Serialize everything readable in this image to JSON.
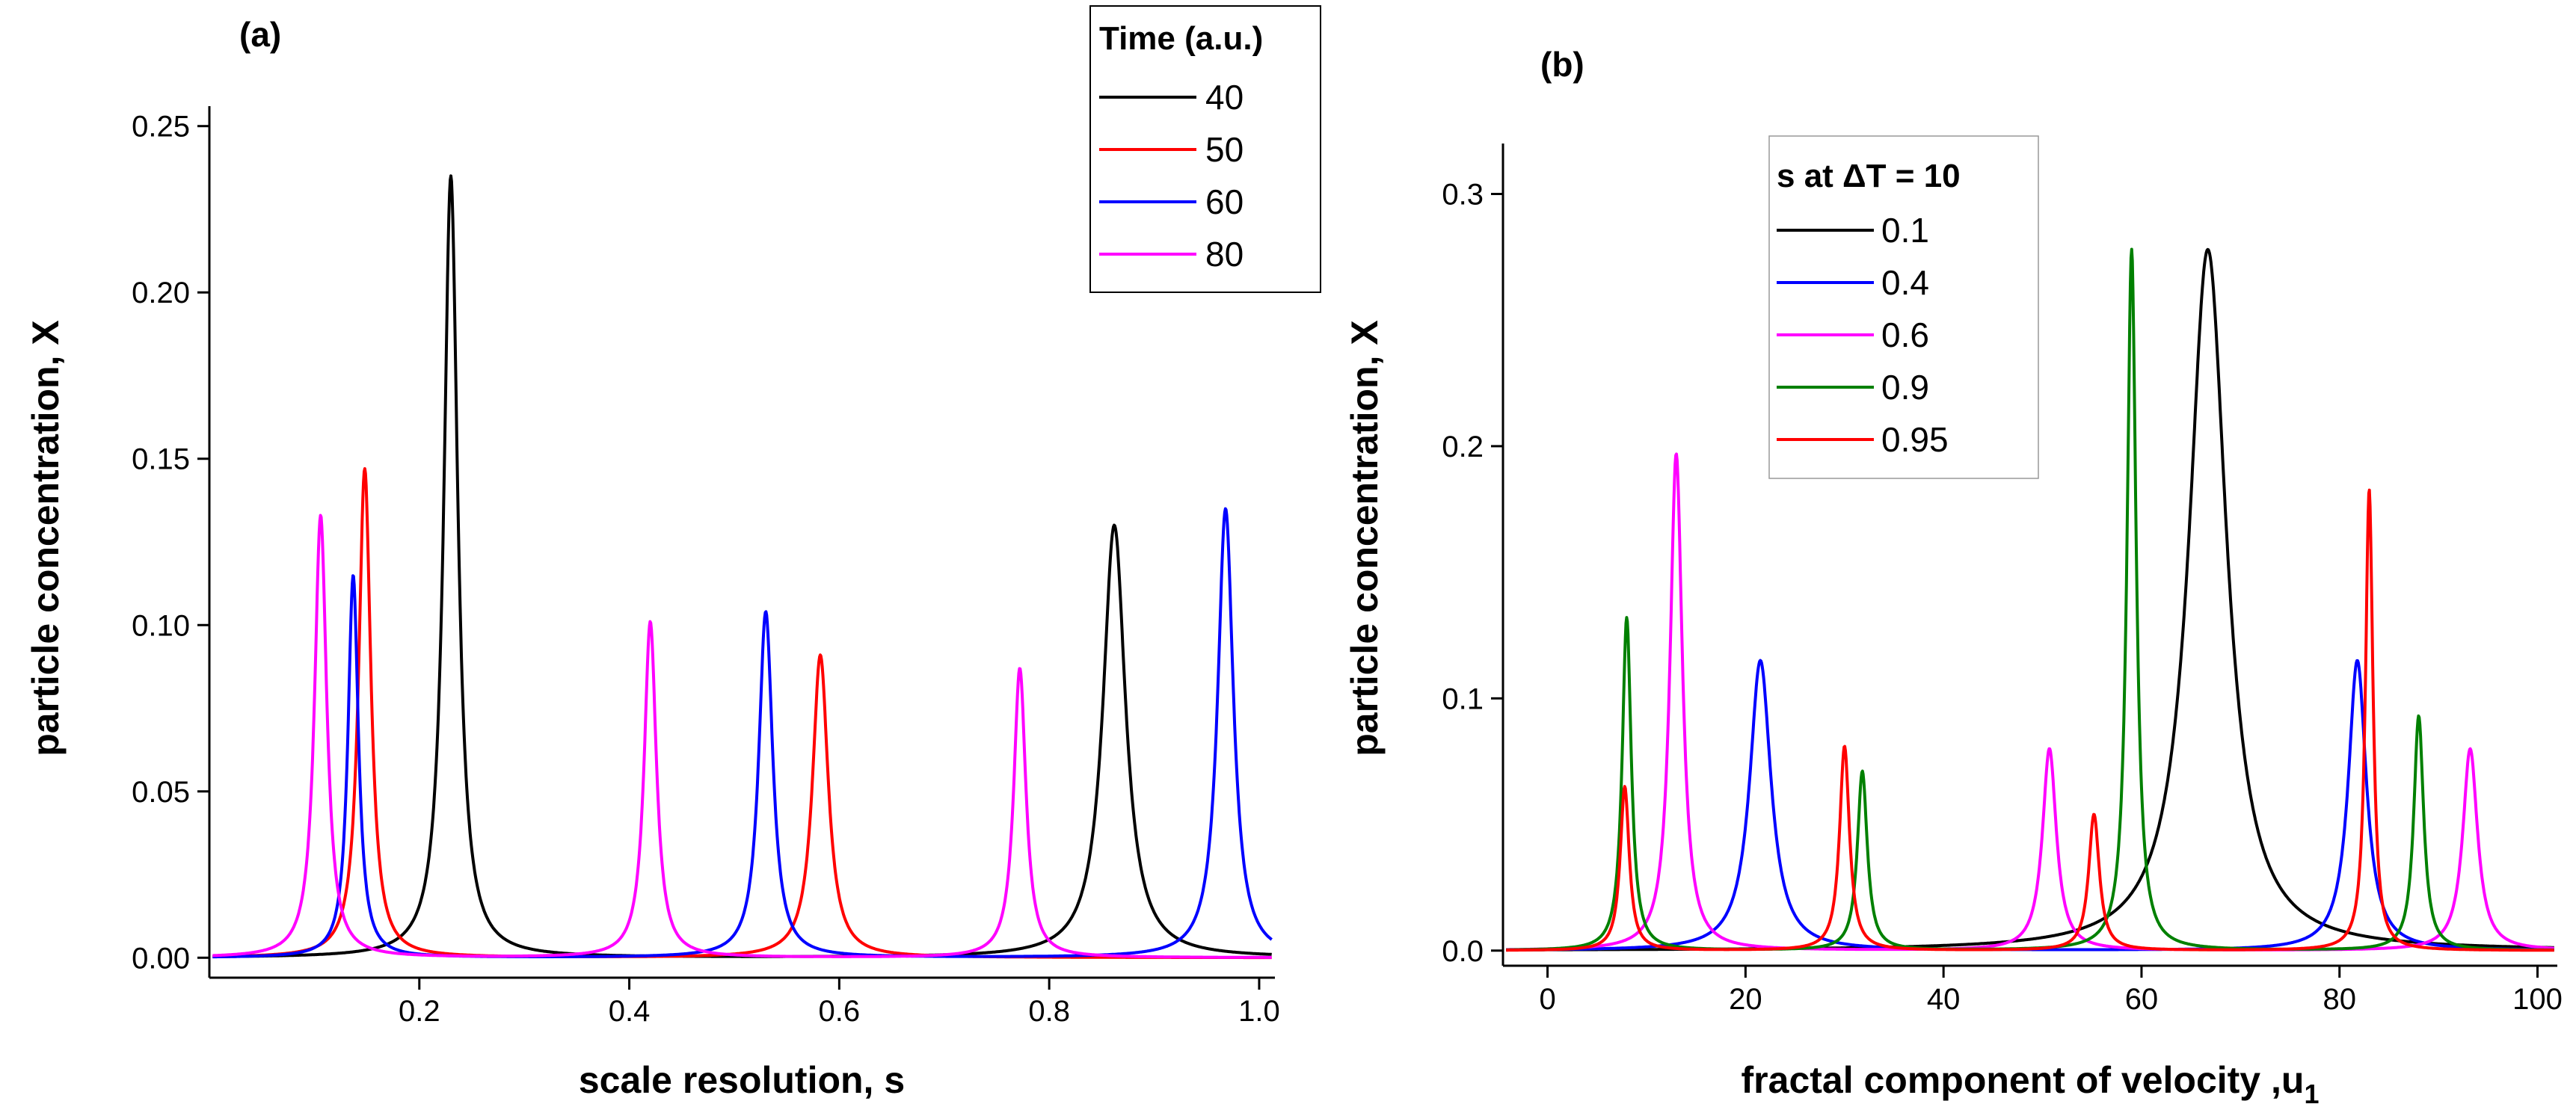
{
  "chart_data": [
    {
      "type": "line",
      "panel_label": "(a)",
      "xlabel": "scale resolution, s",
      "ylabel": "particle concentration, X",
      "xlim": [
        0.0,
        1.015
      ],
      "ylim": [
        -0.006,
        0.256
      ],
      "xticks": [
        0.2,
        0.4,
        0.6,
        0.8,
        1.0
      ],
      "xtick_labels": [
        "0.2",
        "0.4",
        "0.6",
        "0.8",
        "1.0"
      ],
      "yticks": [
        0.0,
        0.05,
        0.1,
        0.15,
        0.2,
        0.25
      ],
      "ytick_labels": [
        "0.00",
        "0.05",
        "0.10",
        "0.15",
        "0.20",
        "0.25"
      ],
      "legend": {
        "title": "Time (a.u.)",
        "position": "top-right"
      },
      "series": [
        {
          "name": "40",
          "color": "#000000",
          "baseline": 0.0,
          "peaks": [
            {
              "x": 0.23,
              "height": 0.235,
              "width": 0.008
            },
            {
              "x": 0.862,
              "height": 0.13,
              "width": 0.013
            }
          ]
        },
        {
          "name": "50",
          "color": "#ff0000",
          "baseline": 0.0,
          "peaks": [
            {
              "x": 0.148,
              "height": 0.147,
              "width": 0.007
            },
            {
              "x": 0.582,
              "height": 0.091,
              "width": 0.009
            }
          ]
        },
        {
          "name": "60",
          "color": "#0000ff",
          "baseline": 0.0,
          "peaks": [
            {
              "x": 0.137,
              "height": 0.115,
              "width": 0.006
            },
            {
              "x": 0.53,
              "height": 0.104,
              "width": 0.008
            },
            {
              "x": 0.968,
              "height": 0.135,
              "width": 0.009
            }
          ]
        },
        {
          "name": "80",
          "color": "#ff00ff",
          "baseline": 0.0,
          "peaks": [
            {
              "x": 0.106,
              "height": 0.133,
              "width": 0.007
            },
            {
              "x": 0.42,
              "height": 0.101,
              "width": 0.007
            },
            {
              "x": 0.772,
              "height": 0.087,
              "width": 0.007
            }
          ]
        }
      ]
    },
    {
      "type": "line",
      "panel_label": "(b)",
      "xlabel": "fractal component of velocity ,u",
      "xlabel_subscript": "1",
      "ylabel": "particle concentration, X",
      "xlim": [
        -4.5,
        102.0
      ],
      "ylim": [
        -0.006,
        0.32
      ],
      "xticks": [
        0,
        20,
        40,
        60,
        80,
        100
      ],
      "xtick_labels": [
        "0",
        "20",
        "40",
        "60",
        "80",
        "100"
      ],
      "yticks": [
        0.0,
        0.1,
        0.2,
        0.3
      ],
      "ytick_labels": [
        "0.0",
        "0.1",
        "0.2",
        "0.3"
      ],
      "legend": {
        "title": "s  at ΔT = 10",
        "position": "top-left"
      },
      "series": [
        {
          "name": "0.1",
          "color": "#000000",
          "baseline": 0.0,
          "peaks": [
            {
              "x": 66.7,
              "height": 0.278,
              "width": 2.3
            }
          ]
        },
        {
          "name": "0.4",
          "color": "#0000ff",
          "baseline": 0.0,
          "peaks": [
            {
              "x": 21.5,
              "height": 0.115,
              "width": 1.3
            },
            {
              "x": 81.8,
              "height": 0.115,
              "width": 1.1
            }
          ]
        },
        {
          "name": "0.6",
          "color": "#ff00ff",
          "baseline": 0.0,
          "peaks": [
            {
              "x": 13.0,
              "height": 0.197,
              "width": 0.75
            },
            {
              "x": 50.7,
              "height": 0.08,
              "width": 0.85
            },
            {
              "x": 93.2,
              "height": 0.08,
              "width": 0.9
            }
          ]
        },
        {
          "name": "0.9",
          "color": "#008000",
          "baseline": 0.0,
          "peaks": [
            {
              "x": 8.0,
              "height": 0.132,
              "width": 0.55
            },
            {
              "x": 31.8,
              "height": 0.071,
              "width": 0.6
            },
            {
              "x": 59.0,
              "height": 0.278,
              "width": 0.55
            },
            {
              "x": 88.0,
              "height": 0.093,
              "width": 0.6
            }
          ]
        },
        {
          "name": "0.95",
          "color": "#ff0000",
          "baseline": 0.0,
          "peaks": [
            {
              "x": 7.8,
              "height": 0.065,
              "width": 0.55
            },
            {
              "x": 30.0,
              "height": 0.081,
              "width": 0.6
            },
            {
              "x": 55.2,
              "height": 0.054,
              "width": 0.65
            },
            {
              "x": 83.0,
              "height": 0.183,
              "width": 0.45
            }
          ]
        }
      ]
    }
  ]
}
